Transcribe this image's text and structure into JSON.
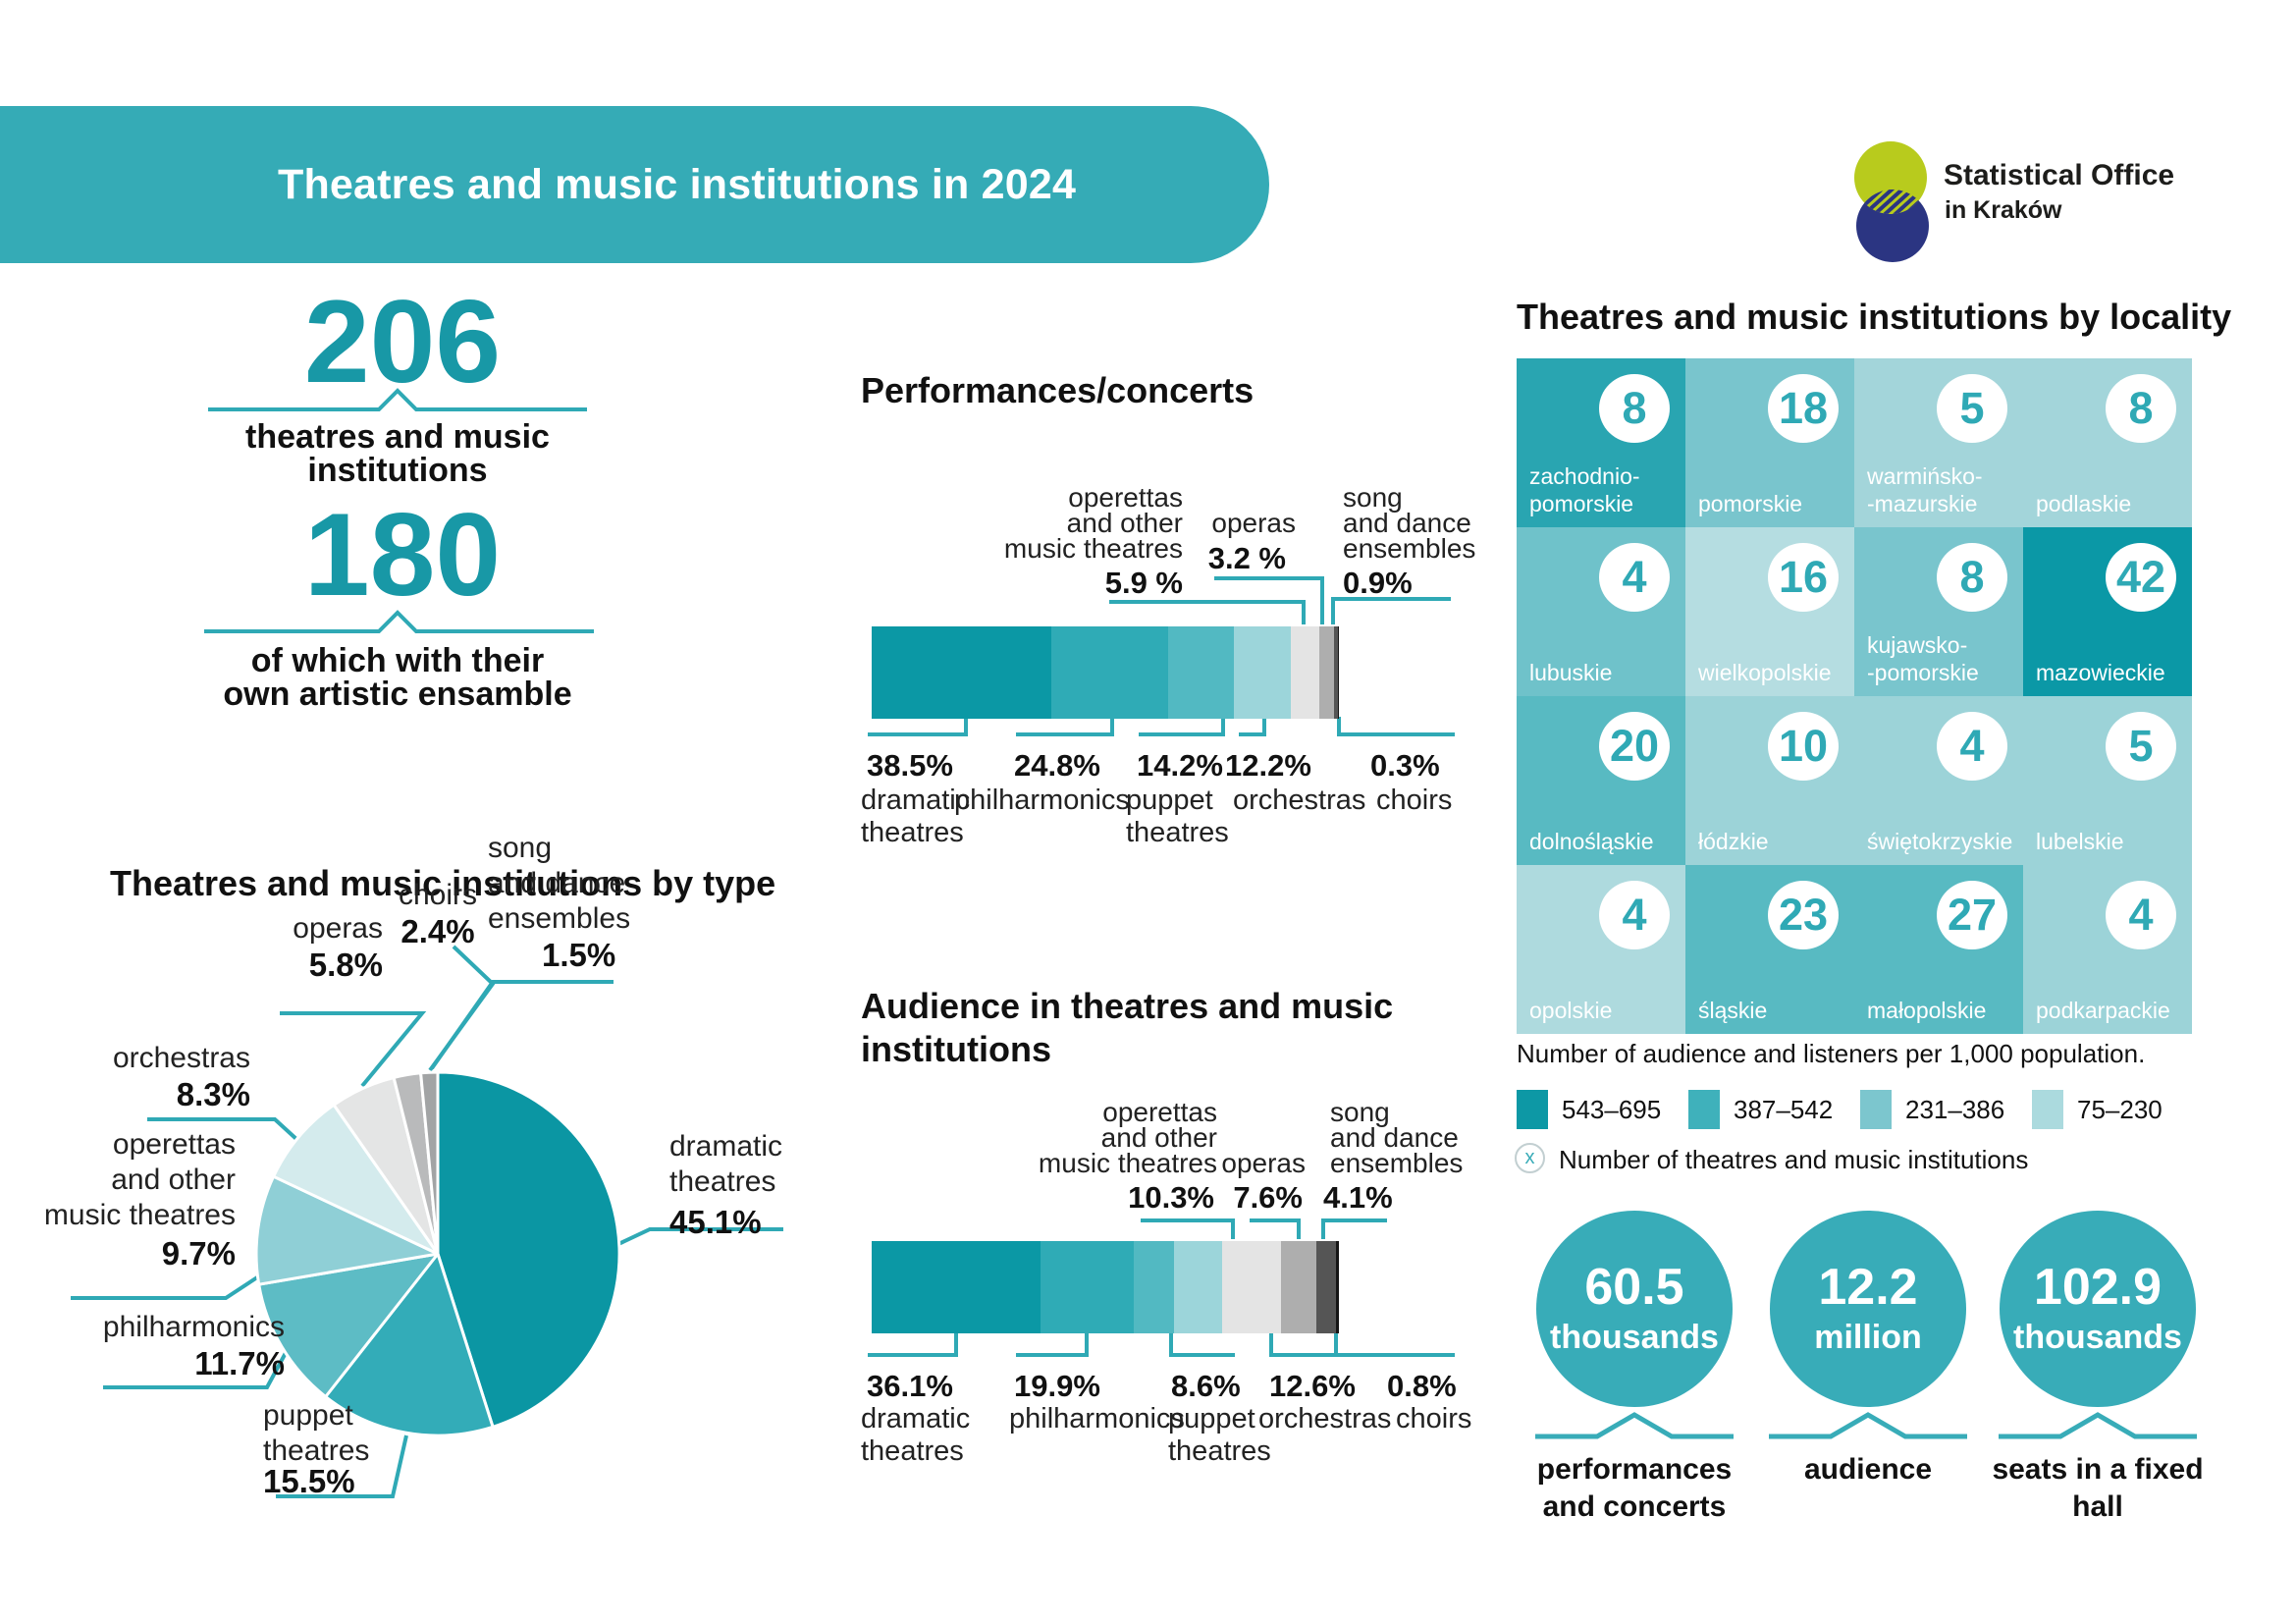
{
  "header": {
    "title": "Theatres and music institutions in 2024"
  },
  "logo": {
    "name_line1": "Statistical Office",
    "name_line2": "in Kraków",
    "colors": {
      "yellow_green": "#b8cb1d",
      "navy": "#2b3582"
    }
  },
  "key_stats": [
    {
      "value": "206",
      "label_lines": [
        "theatres and music",
        "institutions"
      ]
    },
    {
      "value": "180",
      "label_lines": [
        "of which with their",
        "own artistic ensamble"
      ]
    }
  ],
  "summary_stats": [
    {
      "value": "60.5",
      "unit": "thousands",
      "label_lines": [
        "performances",
        "and concerts"
      ]
    },
    {
      "value": "12.2",
      "unit": "million",
      "label_lines": [
        "audience"
      ]
    },
    {
      "value": "102.9",
      "unit": "thousands",
      "label_lines": [
        "seats in a fixed",
        "hall"
      ]
    }
  ],
  "accent_color": "#2fa9b5",
  "chart_data": [
    {
      "id": "performances",
      "type": "bar",
      "title": "Performances/concerts",
      "unit": "%",
      "categories": [
        "dramatic theatres",
        "philharmonics",
        "puppet theatres",
        "orchestras",
        "operettas and other music theatres",
        "operas",
        "song and dance ensembles",
        "choirs"
      ],
      "values": [
        38.5,
        24.8,
        14.2,
        12.2,
        5.9,
        3.2,
        0.9,
        0.3
      ],
      "pct_labels": [
        "38.5%",
        "24.8%",
        "14.2%",
        "12.2%",
        "5.9 %",
        "3.2 %",
        "0.9%",
        "0.3%"
      ],
      "colors": [
        "#0b98a5",
        "#2fabb6",
        "#52b9c2",
        "#9cd5da",
        "#e4e4e4",
        "#aeaeae",
        "#555555",
        "#161616"
      ],
      "label_lines": [
        [
          "dramatic",
          "theatres"
        ],
        [
          "philharmonics"
        ],
        [
          "puppet",
          "theatres"
        ],
        [
          "orchestras"
        ],
        [
          "operettas",
          "and other",
          "music theatres"
        ],
        [
          "operas"
        ],
        [
          "song",
          "and dance",
          "ensembles"
        ],
        [
          "choirs"
        ]
      ]
    },
    {
      "id": "audience",
      "type": "bar",
      "title": "Audience in theatres and music institutions",
      "title_lines": [
        "Audience in theatres and music",
        "institutions"
      ],
      "unit": "%",
      "categories": [
        "dramatic theatres",
        "philharmonics",
        "puppet theatres",
        "operettas and other music theatres",
        "orchestras",
        "operas",
        "song and dance ensembles",
        "choirs"
      ],
      "values": [
        36.1,
        19.9,
        8.6,
        10.3,
        12.6,
        7.6,
        4.1,
        0.8
      ],
      "pct_labels": [
        "36.1%",
        "19.9%",
        "8.6%",
        "10.3%",
        "12.6%",
        "7.6%",
        "4.1%",
        "0.8%"
      ],
      "colors": [
        "#0b98a5",
        "#2fabb6",
        "#52b9c2",
        "#9cd5da",
        "#e4e4e4",
        "#aeaeae",
        "#555555",
        "#161616"
      ],
      "label_lines": [
        [
          "dramatic",
          "theatres"
        ],
        [
          "philharmonics"
        ],
        [
          "puppet",
          "theatres"
        ],
        [
          "operettas",
          "and other",
          "music theatres"
        ],
        [
          "orchestras"
        ],
        [
          "operas"
        ],
        [
          "song",
          "and dance",
          "ensembles"
        ],
        [
          "choirs"
        ]
      ]
    },
    {
      "id": "by_type",
      "type": "pie",
      "title": "Theatres and music institutions by type",
      "categories": [
        "dramatic theatres",
        "puppet theatres",
        "philharmonics",
        "operettas and other music theatres",
        "orchestras",
        "operas",
        "choirs",
        "song and dance ensembles"
      ],
      "values": [
        45.1,
        15.5,
        11.7,
        9.7,
        8.3,
        5.8,
        2.4,
        1.5
      ],
      "pct_labels": [
        "45.1%",
        "15.5%",
        "11.7%",
        "9.7%",
        "8.3%",
        "5.8%",
        "2.4%",
        "1.5%"
      ],
      "colors": [
        "#0b96a3",
        "#33acb8",
        "#5dbcc5",
        "#8fcfd6",
        "#d4ebed",
        "#e4e5e5",
        "#b9babb",
        "#a2a4a5"
      ],
      "label_lines": [
        [
          "dramatic",
          "theatres"
        ],
        [
          "puppet",
          "theatres"
        ],
        [
          "philharmonics"
        ],
        [
          "operettas",
          "and other",
          "music theatres"
        ],
        [
          "orchestras"
        ],
        [
          "operas"
        ],
        [
          "choirs"
        ],
        [
          "song",
          "and dance",
          "ensembles"
        ]
      ]
    },
    {
      "id": "by_locality",
      "type": "heatmap",
      "title": "Theatres and music institutions by locality",
      "note": "Number of audience and listeners per 1,000 population.",
      "marker_symbol": "x",
      "marker_note": "Number of theatres and music institutions",
      "legend_bins": [
        {
          "range": "543–695",
          "color": "#0d98a5"
        },
        {
          "range": "387–542",
          "color": "#3fb1bb"
        },
        {
          "range": "231–386",
          "color": "#7cc6ce"
        },
        {
          "range": "75–230",
          "color": "#abdade"
        }
      ],
      "cells": [
        {
          "name": "zachodnio-pomorskie",
          "name_lines": [
            "zachodnio-",
            "pomorskie"
          ],
          "value": 8,
          "color": "#29a5b1"
        },
        {
          "name": "pomorskie",
          "name_lines": [
            "pomorskie"
          ],
          "value": 18,
          "color": "#79c5cd"
        },
        {
          "name": "warmińsko-mazurskie",
          "name_lines": [
            "warmińsko-",
            "-mazurskie"
          ],
          "value": 5,
          "color": "#a3d5da"
        },
        {
          "name": "podlaskie",
          "name_lines": [
            "podlaskie"
          ],
          "value": 8,
          "color": "#a3d5da"
        },
        {
          "name": "lubuskie",
          "name_lines": [
            "lubuskie"
          ],
          "value": 4,
          "color": "#6fc2ca"
        },
        {
          "name": "wielkopolskie",
          "name_lines": [
            "wielkopolskie"
          ],
          "value": 16,
          "color": "#b5dde1"
        },
        {
          "name": "kujawsko-pomorskie",
          "name_lines": [
            "kujawsko-",
            "-pomorskie"
          ],
          "value": 8,
          "color": "#79c5cd"
        },
        {
          "name": "mazowieckie",
          "name_lines": [
            "mazowieckie"
          ],
          "value": 42,
          "color": "#0b98a6"
        },
        {
          "name": "dolnośląskie",
          "name_lines": [
            "dolnośląskie"
          ],
          "value": 20,
          "color": "#58bac2"
        },
        {
          "name": "łódzkie",
          "name_lines": [
            "łódzkie"
          ],
          "value": 10,
          "color": "#9cd3d8"
        },
        {
          "name": "świętokrzyskie",
          "name_lines": [
            "świętokrzyskie"
          ],
          "value": 4,
          "color": "#9cd3d8"
        },
        {
          "name": "lubelskie",
          "name_lines": [
            "lubelskie"
          ],
          "value": 5,
          "color": "#9cd3d8"
        },
        {
          "name": "opolskie",
          "name_lines": [
            "opolskie"
          ],
          "value": 4,
          "color": "#aedade"
        },
        {
          "name": "śląskie",
          "name_lines": [
            "śląskie"
          ],
          "value": 23,
          "color": "#58bac2"
        },
        {
          "name": "małopolskie",
          "name_lines": [
            "małopolskie"
          ],
          "value": 27,
          "color": "#58bac2"
        },
        {
          "name": "podkarpackie",
          "name_lines": [
            "podkarpackie"
          ],
          "value": 4,
          "color": "#9cd3d8"
        }
      ]
    }
  ]
}
